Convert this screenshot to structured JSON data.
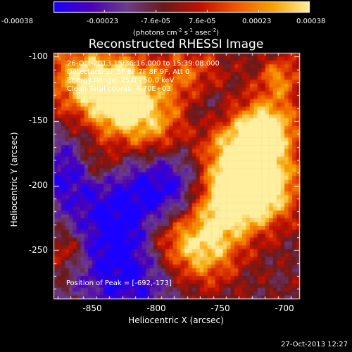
{
  "chart_data": {
    "type": "heatmap",
    "title": "Reconstructed RHESSI Image",
    "xlabel": "Heliocentric X (arcsec)",
    "ylabel": "Heliocentric Y (arcsec)",
    "xlim": [
      -878,
      -688
    ],
    "ylim": [
      -288,
      -97
    ],
    "x_ticks": [
      "-850",
      "-800",
      "-750",
      "-700"
    ],
    "x_tick_values": [
      -850,
      -800,
      -750,
      -700
    ],
    "y_ticks": [
      "-100",
      "-150",
      "-200",
      "-250"
    ],
    "y_tick_values": [
      -100,
      -150,
      -200,
      -250
    ],
    "colorbar": {
      "ticks": [
        "-0.00038",
        "-0.00023",
        "-7.6e-05",
        "7.6e-05",
        "0.00023",
        "0.00038"
      ],
      "tick_values": [
        -0.00038,
        -0.00023,
        -7.6e-05,
        7.6e-05,
        0.00023,
        0.00038
      ],
      "range": [
        -0.00038,
        0.00038
      ],
      "units_prefix": "(photons cm",
      "units_exp1": "-2",
      "units_mid": " s",
      "units_exp2": "-1",
      "units_suffix": " asec",
      "units_exp3": "-2",
      "units_close": ")",
      "colors": [
        "#1a00ff",
        "#4b00b8",
        "#6b3d8a",
        "#6a1a1a",
        "#c21000",
        "#f05800",
        "#f7a300",
        "#fff0a0"
      ]
    },
    "info_lines": [
      "26-Oct-2013 15:36:16.000 to 15:39:08.000",
      "Detectors: 3F 5F 6F 7F 8F 9F, Att 0",
      "Energy Range: 25.0 - 50.0 keV",
      "Clean     Total counts: 4.70E+03"
    ],
    "peak_label": "Position of Peak = [-692,-173]",
    "peak_position": [
      -692,
      -173
    ],
    "image_grid_size": [
      64,
      64
    ]
  },
  "footer_date": "27-Oct-2013 12:27"
}
